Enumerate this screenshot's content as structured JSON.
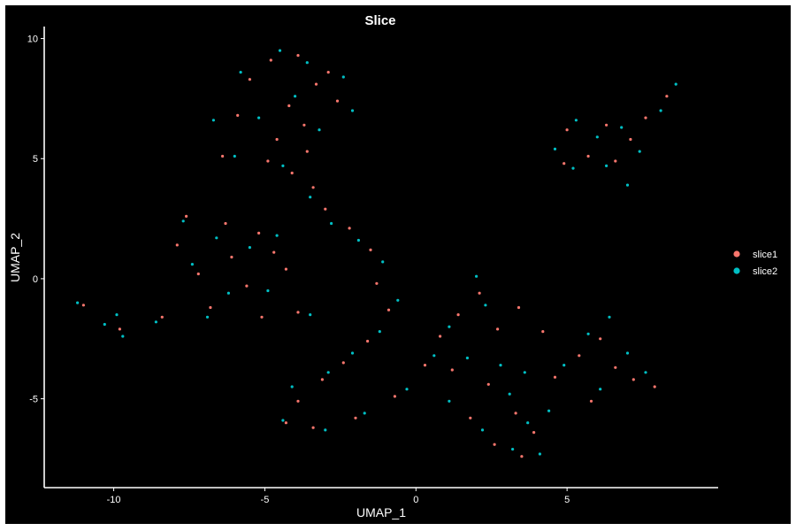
{
  "chart_data": {
    "type": "scatter",
    "title": "Slice",
    "xlabel": "UMAP_1",
    "ylabel": "UMAP_2",
    "xlim": [
      -12.3,
      10.0
    ],
    "ylim": [
      -8.7,
      10.5
    ],
    "xticks": [
      -10,
      -5,
      0,
      5
    ],
    "yticks": [
      -5,
      0,
      5,
      10
    ],
    "tick_labels": {
      "x": [
        "-10",
        "-5",
        "0",
        "5"
      ],
      "y": [
        "-5",
        "0",
        "5",
        "10"
      ]
    },
    "background": "#000000",
    "grid": false,
    "legend_position": "right",
    "series": [
      {
        "name": "slice1",
        "color": "#F8766D",
        "values": [
          [
            -4.8,
            9.1
          ],
          [
            -3.9,
            9.3
          ],
          [
            -2.9,
            8.6
          ],
          [
            -5.5,
            8.3
          ],
          [
            -3.3,
            8.1
          ],
          [
            -4.2,
            7.2
          ],
          [
            -2.6,
            7.4
          ],
          [
            -5.9,
            6.8
          ],
          [
            -3.7,
            6.4
          ],
          [
            -4.6,
            5.8
          ],
          [
            -6.4,
            5.1
          ],
          [
            -4.9,
            4.9
          ],
          [
            -3.6,
            5.3
          ],
          [
            -4.1,
            4.4
          ],
          [
            -3.4,
            3.8
          ],
          [
            -3.0,
            2.9
          ],
          [
            -7.6,
            2.6
          ],
          [
            -6.3,
            2.3
          ],
          [
            -5.2,
            1.9
          ],
          [
            -7.9,
            1.4
          ],
          [
            -6.1,
            0.9
          ],
          [
            -4.7,
            1.1
          ],
          [
            -7.2,
            0.2
          ],
          [
            -5.6,
            -0.3
          ],
          [
            -4.3,
            0.4
          ],
          [
            -6.8,
            -1.2
          ],
          [
            -5.1,
            -1.6
          ],
          [
            -3.9,
            -1.4
          ],
          [
            -2.2,
            2.1
          ],
          [
            -1.5,
            1.2
          ],
          [
            -1.3,
            -0.2
          ],
          [
            -0.9,
            -1.3
          ],
          [
            -1.6,
            -2.6
          ],
          [
            -2.4,
            -3.5
          ],
          [
            -3.1,
            -4.2
          ],
          [
            -3.9,
            -5.1
          ],
          [
            -4.3,
            -6.0
          ],
          [
            -3.4,
            -6.2
          ],
          [
            -2.0,
            -5.8
          ],
          [
            -0.7,
            -4.9
          ],
          [
            0.3,
            -3.6
          ],
          [
            0.8,
            -2.4
          ],
          [
            1.4,
            -1.5
          ],
          [
            2.1,
            -0.6
          ],
          [
            2.7,
            -2.1
          ],
          [
            1.2,
            -3.8
          ],
          [
            2.4,
            -4.4
          ],
          [
            3.3,
            -5.6
          ],
          [
            3.9,
            -6.4
          ],
          [
            3.5,
            -7.4
          ],
          [
            2.6,
            -6.9
          ],
          [
            1.8,
            -5.8
          ],
          [
            4.6,
            -4.1
          ],
          [
            5.4,
            -3.2
          ],
          [
            6.1,
            -2.5
          ],
          [
            6.6,
            -3.7
          ],
          [
            7.2,
            -4.2
          ],
          [
            7.9,
            -4.5
          ],
          [
            5.8,
            -5.1
          ],
          [
            4.2,
            -2.2
          ],
          [
            3.4,
            -1.2
          ],
          [
            5.0,
            6.2
          ],
          [
            6.3,
            6.4
          ],
          [
            7.1,
            5.8
          ],
          [
            5.7,
            5.1
          ],
          [
            4.9,
            4.8
          ],
          [
            7.6,
            6.7
          ],
          [
            8.3,
            7.6
          ],
          [
            6.6,
            4.9
          ],
          [
            -11.0,
            -1.1
          ],
          [
            -9.8,
            -2.1
          ],
          [
            -8.4,
            -1.6
          ]
        ]
      },
      {
        "name": "slice2",
        "color": "#00BFC4",
        "values": [
          [
            -4.5,
            9.5
          ],
          [
            -3.6,
            9.0
          ],
          [
            -2.4,
            8.4
          ],
          [
            -5.8,
            8.6
          ],
          [
            -2.1,
            7.0
          ],
          [
            -4.0,
            7.6
          ],
          [
            -6.7,
            6.6
          ],
          [
            -5.2,
            6.7
          ],
          [
            -3.2,
            6.2
          ],
          [
            -6.0,
            5.1
          ],
          [
            -4.4,
            4.7
          ],
          [
            -3.5,
            3.4
          ],
          [
            -2.8,
            2.3
          ],
          [
            -7.7,
            2.4
          ],
          [
            -6.6,
            1.7
          ],
          [
            -5.5,
            1.3
          ],
          [
            -7.4,
            0.6
          ],
          [
            -6.2,
            -0.6
          ],
          [
            -4.9,
            -0.5
          ],
          [
            -6.9,
            -1.6
          ],
          [
            -3.5,
            -1.5
          ],
          [
            -4.6,
            1.8
          ],
          [
            -1.9,
            1.6
          ],
          [
            -1.1,
            0.7
          ],
          [
            -0.6,
            -0.9
          ],
          [
            -1.2,
            -2.2
          ],
          [
            -2.1,
            -3.1
          ],
          [
            -2.9,
            -3.9
          ],
          [
            -4.1,
            -4.5
          ],
          [
            -4.4,
            -5.9
          ],
          [
            -3.0,
            -6.3
          ],
          [
            -1.7,
            -5.6
          ],
          [
            -0.3,
            -4.6
          ],
          [
            0.6,
            -3.2
          ],
          [
            1.1,
            -2.0
          ],
          [
            2.0,
            0.1
          ],
          [
            2.3,
            -1.1
          ],
          [
            1.7,
            -3.3
          ],
          [
            2.8,
            -3.6
          ],
          [
            3.6,
            -3.9
          ],
          [
            3.1,
            -4.8
          ],
          [
            3.7,
            -6.0
          ],
          [
            3.2,
            -7.1
          ],
          [
            4.1,
            -7.3
          ],
          [
            2.2,
            -6.3
          ],
          [
            1.1,
            -5.1
          ],
          [
            4.9,
            -3.6
          ],
          [
            5.7,
            -2.3
          ],
          [
            6.4,
            -1.6
          ],
          [
            7.0,
            -3.1
          ],
          [
            7.6,
            -3.9
          ],
          [
            6.1,
            -4.6
          ],
          [
            4.4,
            -5.5
          ],
          [
            5.3,
            6.6
          ],
          [
            6.0,
            5.9
          ],
          [
            6.8,
            6.3
          ],
          [
            7.4,
            5.3
          ],
          [
            8.6,
            8.1
          ],
          [
            8.1,
            7.0
          ],
          [
            4.6,
            5.4
          ],
          [
            6.3,
            4.7
          ],
          [
            7.0,
            3.9
          ],
          [
            5.2,
            4.6
          ],
          [
            -11.2,
            -1.0
          ],
          [
            -9.9,
            -1.5
          ],
          [
            -9.7,
            -2.4
          ],
          [
            -10.3,
            -1.9
          ],
          [
            -8.6,
            -1.8
          ]
        ]
      }
    ]
  }
}
